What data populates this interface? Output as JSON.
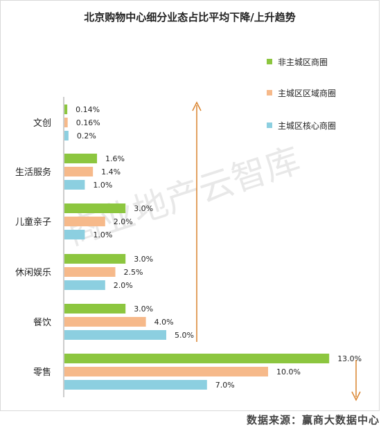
{
  "chart_data": {
    "type": "bar",
    "orientation": "horizontal",
    "title": "北京购物中心细分业态占比平均下降/上升趋势",
    "categories": [
      "文创",
      "生活服务",
      "儿童亲子",
      "休闲娱乐",
      "餐饮",
      "零售"
    ],
    "series": [
      {
        "name": "非主城区商圈",
        "color": "#8cc63f",
        "values": [
          0.14,
          1.6,
          3.0,
          3.0,
          3.0,
          13.0
        ],
        "labels": [
          "0.14%",
          "1.6%",
          "3.0%",
          "3.0%",
          "3.0%",
          "13.0%"
        ]
      },
      {
        "name": "主城区区域商圈",
        "color": "#f6b98a",
        "values": [
          0.16,
          1.4,
          2.0,
          2.5,
          4.0,
          10.0
        ],
        "labels": [
          "0.16%",
          "1.4%",
          "2.0%",
          "2.5%",
          "4.0%",
          "10.0%"
        ]
      },
      {
        "name": "主城区核心商圈",
        "color": "#8ccfe0",
        "values": [
          0.2,
          1.0,
          1.0,
          2.0,
          5.0,
          7.0
        ],
        "labels": [
          "0.2%",
          "1.0%",
          "1.0%",
          "2.0%",
          "5.0%",
          "7.0%"
        ]
      }
    ],
    "xlim": [
      0,
      14
    ],
    "grid": false,
    "legend_position": "top-right",
    "arrow_color": "#d9822b"
  },
  "watermark": "商业地产云智库",
  "source": "数据来源：赢商大数据中心"
}
